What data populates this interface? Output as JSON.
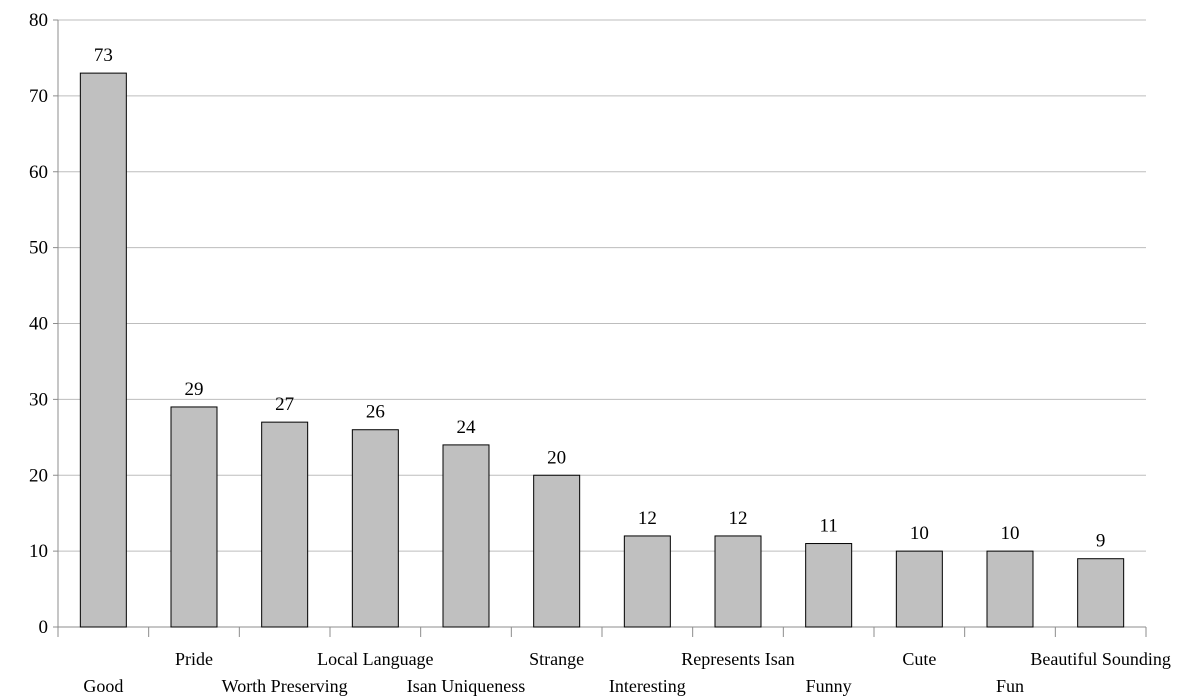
{
  "chart_data": {
    "type": "bar",
    "title": "",
    "xlabel": "",
    "ylabel": "",
    "ylim": [
      0,
      80
    ],
    "yticks": [
      0,
      10,
      20,
      30,
      40,
      50,
      60,
      70,
      80
    ],
    "grid": true,
    "colors": {
      "bar_fill": "#c0c0c0",
      "bar_stroke": "#000000",
      "grid": "#bdbdbd"
    },
    "categories": [
      "Good",
      "Pride",
      "Worth Preserving",
      "Local Language",
      "Isan Uniqueness",
      "Strange",
      "Interesting",
      "Represents Isan",
      "Funny",
      "Cute",
      "Fun",
      "Beautiful Sounding"
    ],
    "values": [
      73,
      29,
      27,
      26,
      24,
      20,
      12,
      12,
      11,
      10,
      10,
      9
    ]
  }
}
